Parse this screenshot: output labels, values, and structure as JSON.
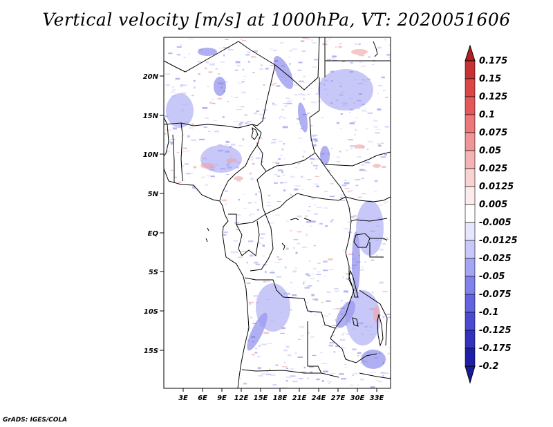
{
  "title": "Vertical velocity [m/s] at 1000hPa, VT: 2020051606",
  "credit": "GrADS: IGES/COLA",
  "map": {
    "lat_labels": [
      "20N",
      "15N",
      "10N",
      "5N",
      "EQ",
      "5S",
      "10S",
      "15S"
    ],
    "lon_labels": [
      "3E",
      "6E",
      "9E",
      "12E",
      "15E",
      "18E",
      "21E",
      "24E",
      "27E",
      "30E",
      "33E"
    ]
  },
  "colorbar": {
    "labels": [
      "0.175",
      "0.15",
      "0.125",
      "0.1",
      "0.075",
      "0.05",
      "0.025",
      "0.0125",
      "0.005",
      "-0.005",
      "-0.0125",
      "-0.025",
      "-0.05",
      "-0.075",
      "-0.1",
      "-0.125",
      "-0.175",
      "-0.2"
    ],
    "colors": [
      "#b41e1e",
      "#c83232",
      "#dc4646",
      "#e45a5a",
      "#ec7878",
      "#f09696",
      "#f5b4b4",
      "#f9d2d2",
      "#fcebeb",
      "#ffffff",
      "#e6e6fc",
      "#c8c8fa",
      "#a5a5f5",
      "#8282ec",
      "#6464e1",
      "#4b4bd2",
      "#3232be",
      "#1e1ea8",
      "#1a1a96"
    ]
  }
}
